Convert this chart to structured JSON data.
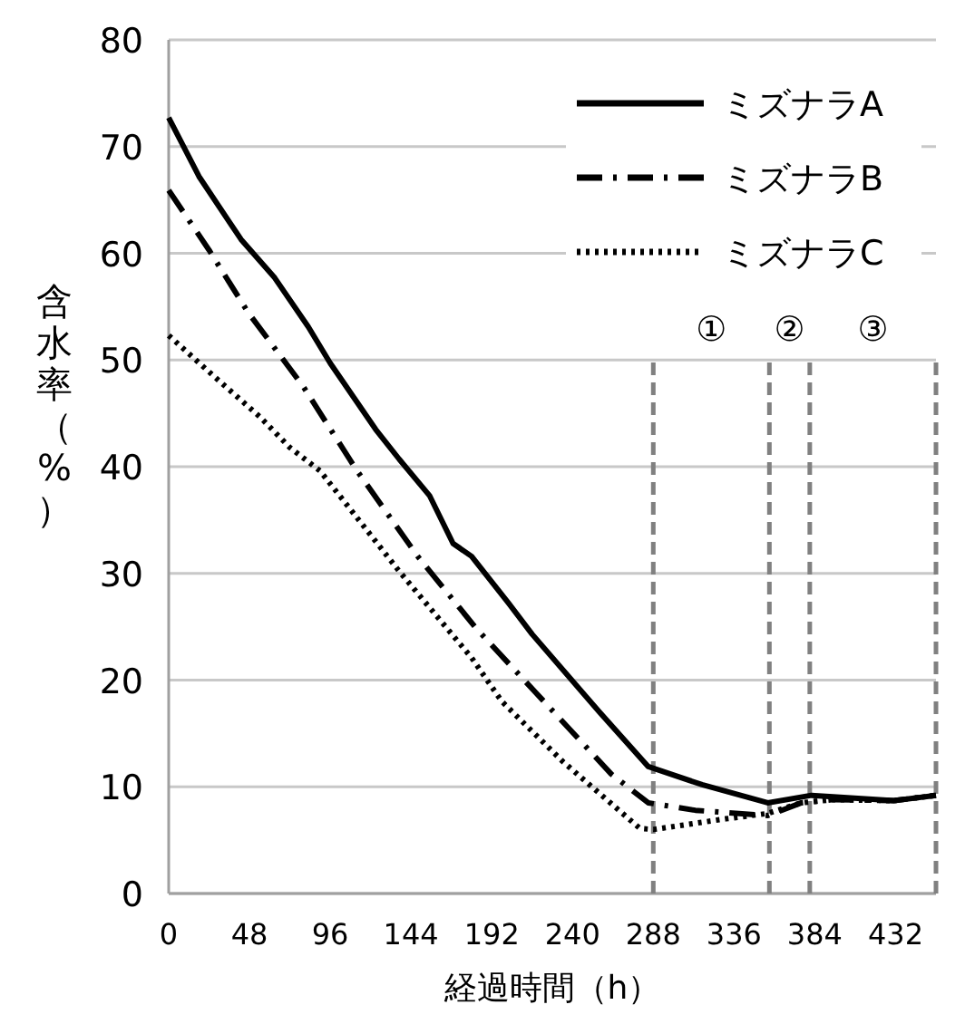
{
  "chart_data": {
    "type": "line",
    "xlabel": "経過時間（h）",
    "ylabel": "含水率（%）",
    "xlim": [
      0,
      456
    ],
    "ylim": [
      0,
      80
    ],
    "xticks": [
      0,
      48,
      96,
      144,
      192,
      240,
      288,
      336,
      384,
      432
    ],
    "yticks": [
      0,
      10,
      20,
      30,
      40,
      50,
      60,
      70,
      80
    ],
    "grid": "y",
    "legend": "top right",
    "series": [
      {
        "name": "ミズナラA",
        "color": "#000000",
        "line_style": "solid",
        "x": [
          0,
          18,
          43,
          63,
          83,
          96,
          123,
          137,
          155,
          169,
          180,
          202,
          216,
          256,
          285,
          317,
          356,
          382,
          431,
          456
        ],
        "values": [
          72.7,
          67.2,
          61.3,
          57.7,
          53.1,
          49.7,
          43.5,
          40.7,
          37.3,
          32.8,
          31.6,
          27.2,
          24.3,
          17.0,
          11.9,
          10.2,
          8.5,
          9.2,
          8.7,
          9.2
        ]
      },
      {
        "name": "ミズナラB",
        "color": "#000000",
        "line_style": "dashdot",
        "x": [
          0,
          24,
          47,
          80,
          112,
          148,
          183,
          223,
          263,
          285,
          313,
          356,
          376,
          395,
          431,
          456
        ],
        "values": [
          65.9,
          60.3,
          54.5,
          47.5,
          39.6,
          31.6,
          24.8,
          18.0,
          11.2,
          8.5,
          7.8,
          7.3,
          8.5,
          8.8,
          8.7,
          9.2
        ]
      },
      {
        "name": "ミズナラC",
        "color": "#000000",
        "line_style": "dotted",
        "x": [
          0,
          26,
          54,
          72,
          90,
          137,
          180,
          198,
          234,
          280,
          288,
          331,
          356,
          376,
          395,
          431,
          456
        ],
        "values": [
          52.3,
          48.6,
          44.7,
          41.8,
          39.6,
          30.2,
          22.1,
          18.0,
          12.4,
          6.1,
          6.0,
          7.0,
          7.5,
          8.5,
          8.8,
          8.7,
          9.2
        ]
      }
    ],
    "ref_lines": [
      {
        "axis": "x",
        "value": 288,
        "color": "#808080",
        "line_style": "dashed"
      },
      {
        "axis": "x",
        "value": 357,
        "color": "#808080",
        "line_style": "dashed"
      },
      {
        "axis": "x",
        "value": 381,
        "color": "#808080",
        "line_style": "dashed"
      },
      {
        "axis": "x",
        "value": 456,
        "color": "#808080",
        "line_style": "dashed"
      }
    ],
    "annotations": [
      "①",
      "②",
      "③"
    ]
  }
}
